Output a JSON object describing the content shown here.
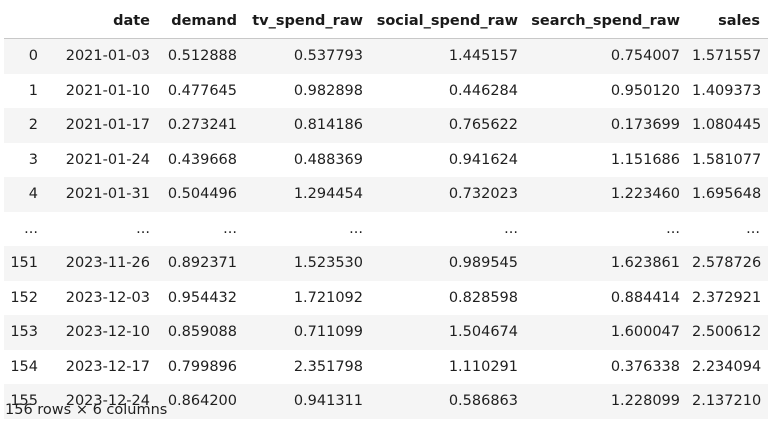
{
  "dataframe": {
    "columns": [
      "",
      "date",
      "demand",
      "tv_spend_raw",
      "social_spend_raw",
      "search_spend_raw",
      "sales"
    ],
    "rows": [
      [
        "0",
        "2021-01-03",
        "0.512888",
        "0.537793",
        "1.445157",
        "0.754007",
        "1.571557"
      ],
      [
        "1",
        "2021-01-10",
        "0.477645",
        "0.982898",
        "0.446284",
        "0.950120",
        "1.409373"
      ],
      [
        "2",
        "2021-01-17",
        "0.273241",
        "0.814186",
        "0.765622",
        "0.173699",
        "1.080445"
      ],
      [
        "3",
        "2021-01-24",
        "0.439668",
        "0.488369",
        "0.941624",
        "1.151686",
        "1.581077"
      ],
      [
        "4",
        "2021-01-31",
        "0.504496",
        "1.294454",
        "0.732023",
        "1.223460",
        "1.695648"
      ],
      [
        "...",
        "...",
        "...",
        "...",
        "...",
        "...",
        "..."
      ],
      [
        "151",
        "2023-11-26",
        "0.892371",
        "1.523530",
        "0.989545",
        "1.623861",
        "2.578726"
      ],
      [
        "152",
        "2023-12-03",
        "0.954432",
        "1.721092",
        "0.828598",
        "0.884414",
        "2.372921"
      ],
      [
        "153",
        "2023-12-10",
        "0.859088",
        "0.711099",
        "1.504674",
        "1.600047",
        "2.500612"
      ],
      [
        "154",
        "2023-12-17",
        "0.799896",
        "2.351798",
        "1.110291",
        "0.376338",
        "2.234094"
      ],
      [
        "155",
        "2023-12-24",
        "0.864200",
        "0.941311",
        "0.586863",
        "1.228099",
        "2.137210"
      ]
    ],
    "shape_text": "156 rows × 6 columns"
  }
}
